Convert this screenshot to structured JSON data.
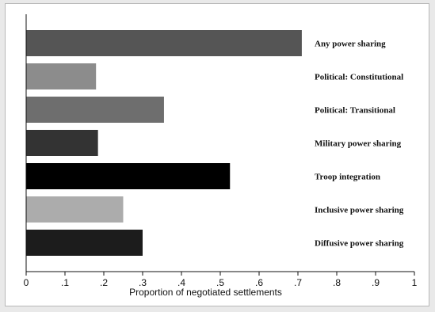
{
  "chart_data": {
    "type": "bar",
    "orientation": "horizontal",
    "categories": [
      "Any power sharing",
      "Political: Constitutional",
      "Political: Transitional",
      "Military power sharing",
      "Troop integration",
      "Inclusive power sharing",
      "Diffusive power sharing"
    ],
    "values": [
      0.71,
      0.18,
      0.355,
      0.185,
      0.525,
      0.25,
      0.3
    ],
    "colors": [
      "#555555",
      "#8c8c8c",
      "#6e6e6e",
      "#333333",
      "#000000",
      "#acacac",
      "#1c1c1c"
    ],
    "xlabel": "Proportion of negotiated settlements",
    "xlim": [
      0,
      1
    ],
    "xticks": [
      0,
      0.1,
      0.2,
      0.3,
      0.4,
      0.5,
      0.6,
      0.7,
      0.8,
      0.9,
      1
    ],
    "xtick_labels": [
      "0",
      ".1",
      ".2",
      ".3",
      ".4",
      ".5",
      ".6",
      ".7",
      ".8",
      ".9",
      "1"
    ],
    "grid": false,
    "labels_position": "right of plot"
  }
}
